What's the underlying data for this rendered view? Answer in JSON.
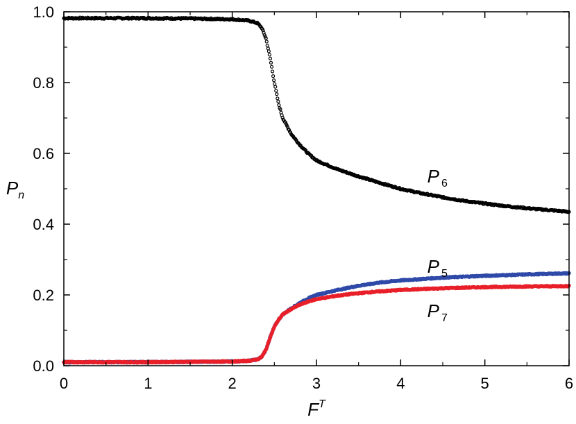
{
  "chart_data": {
    "type": "scatter",
    "xlabel": {
      "base": "F",
      "sup": "T"
    },
    "ylabel": {
      "base": "P",
      "sub": "n"
    },
    "xlim": [
      0,
      6
    ],
    "ylim": [
      0,
      1.0
    ],
    "xticks": [
      "0",
      "1",
      "2",
      "3",
      "4",
      "5",
      "6"
    ],
    "yticks": [
      "0.0",
      "0.2",
      "0.4",
      "0.6",
      "0.8",
      "1.0"
    ],
    "grid": false,
    "legend": "none",
    "series": [
      {
        "id": "p6",
        "label": {
          "base": "P",
          "sub": "6"
        },
        "color": "#000000",
        "marker": "open-circle",
        "points": [
          [
            0,
            0.982
          ],
          [
            0.5,
            0.982
          ],
          [
            1,
            0.982
          ],
          [
            1.5,
            0.981
          ],
          [
            2,
            0.979
          ],
          [
            2.2,
            0.975
          ],
          [
            2.3,
            0.968
          ],
          [
            2.35,
            0.955
          ],
          [
            2.4,
            0.925
          ],
          [
            2.45,
            0.87
          ],
          [
            2.5,
            0.8
          ],
          [
            2.55,
            0.74
          ],
          [
            2.6,
            0.7
          ],
          [
            2.7,
            0.655
          ],
          [
            2.8,
            0.625
          ],
          [
            2.9,
            0.6
          ],
          [
            3,
            0.58
          ],
          [
            3.25,
            0.555
          ],
          [
            3.5,
            0.535
          ],
          [
            3.75,
            0.517
          ],
          [
            4,
            0.5
          ],
          [
            4.25,
            0.487
          ],
          [
            4.5,
            0.476
          ],
          [
            4.75,
            0.466
          ],
          [
            5,
            0.458
          ],
          [
            5.25,
            0.451
          ],
          [
            5.5,
            0.445
          ],
          [
            5.75,
            0.44
          ],
          [
            6,
            0.435
          ]
        ]
      },
      {
        "id": "p5",
        "label": {
          "base": "P",
          "sub": "5"
        },
        "color": "#2f4aa8",
        "marker": "dense-line",
        "points": [
          [
            0,
            0.01
          ],
          [
            1,
            0.01
          ],
          [
            2,
            0.012
          ],
          [
            2.2,
            0.014
          ],
          [
            2.3,
            0.018
          ],
          [
            2.35,
            0.025
          ],
          [
            2.4,
            0.045
          ],
          [
            2.45,
            0.08
          ],
          [
            2.5,
            0.11
          ],
          [
            2.55,
            0.13
          ],
          [
            2.6,
            0.145
          ],
          [
            2.7,
            0.162
          ],
          [
            2.8,
            0.177
          ],
          [
            2.9,
            0.19
          ],
          [
            3,
            0.2
          ],
          [
            3.25,
            0.214
          ],
          [
            3.5,
            0.226
          ],
          [
            3.75,
            0.235
          ],
          [
            4,
            0.241
          ],
          [
            4.5,
            0.249
          ],
          [
            5,
            0.254
          ],
          [
            5.5,
            0.258
          ],
          [
            6,
            0.261
          ]
        ]
      },
      {
        "id": "p7",
        "label": {
          "base": "P",
          "sub": "7"
        },
        "color": "#e8202a",
        "marker": "dense-line",
        "points": [
          [
            0,
            0.01
          ],
          [
            1,
            0.01
          ],
          [
            2,
            0.012
          ],
          [
            2.2,
            0.014
          ],
          [
            2.3,
            0.018
          ],
          [
            2.35,
            0.025
          ],
          [
            2.4,
            0.045
          ],
          [
            2.45,
            0.08
          ],
          [
            2.5,
            0.11
          ],
          [
            2.55,
            0.13
          ],
          [
            2.6,
            0.145
          ],
          [
            2.7,
            0.16
          ],
          [
            2.8,
            0.172
          ],
          [
            2.9,
            0.181
          ],
          [
            3,
            0.188
          ],
          [
            3.25,
            0.198
          ],
          [
            3.5,
            0.205
          ],
          [
            3.75,
            0.21
          ],
          [
            4,
            0.214
          ],
          [
            4.5,
            0.219
          ],
          [
            5,
            0.222
          ],
          [
            5.5,
            0.224
          ],
          [
            6,
            0.225
          ]
        ]
      }
    ],
    "annotations": [
      {
        "series": "p6",
        "base": "P",
        "sub": "6",
        "x": 4.25,
        "y": 0.535
      },
      {
        "series": "p5",
        "base": "P",
        "sub": "5",
        "x": 4.25,
        "y": 0.28
      },
      {
        "series": "p7",
        "base": "P",
        "sub": "7",
        "x": 4.25,
        "y": 0.155
      }
    ]
  }
}
